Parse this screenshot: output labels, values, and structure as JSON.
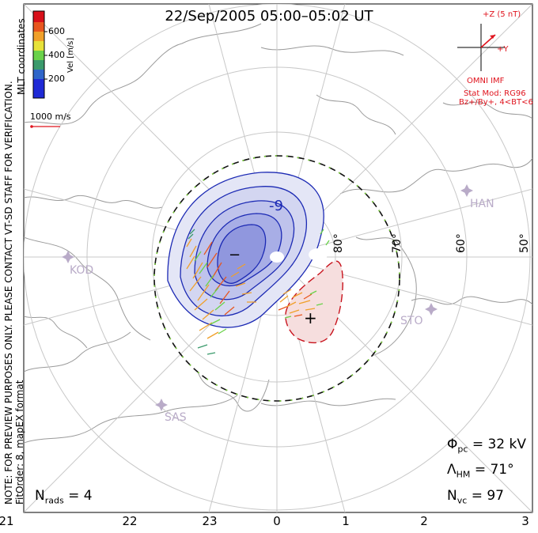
{
  "title": "22/Sep/2005 05:00–05:02 UT",
  "colorbar": {
    "unit_label": "Vel [m/s]",
    "ticks": [
      "600",
      "400",
      "200"
    ],
    "colors": [
      "#1f2ad6",
      "#2f66c9",
      "#3a9a6c",
      "#6ad24a",
      "#e7e23a",
      "#f0a02a",
      "#e8561f",
      "#d8101a"
    ]
  },
  "coordinates_label": "MLT coordinates",
  "scale_vector_label": "1000 m/s",
  "preview_note": "NOTE: FOR PREVIEW PURPOSES ONLY. PLEASE CONTACT VT-SD STAFF FOR VERIFICATION.",
  "fit_order_note": "FitOrder: 8, mapEX format",
  "imf": {
    "z_label": "+Z (5 nT)",
    "y_label": "+Y",
    "source": "OMNI IMF",
    "stat_mod": "Stat Mod: RG96",
    "condition": "Bz+/By+, 4<BT<6"
  },
  "map": {
    "latitude_labels": [
      "80°",
      "70°",
      "60°",
      "50°"
    ],
    "contour_label": "-9",
    "radar_stations": [
      "HAN",
      "KOD",
      "STO",
      "SAS"
    ],
    "min_marker": "−",
    "max_marker": "+"
  },
  "stats": {
    "phi_pc_symbol": "Φ",
    "phi_pc_sub": "pc",
    "phi_pc_value": "= 32 kV",
    "lambda_symbol": "Λ",
    "lambda_sub": "HM",
    "lambda_value": "= 71°",
    "nvc_symbol": "N",
    "nvc_sub": "vc",
    "nvc_value": "= 97",
    "nrads_symbol": "N",
    "nrads_sub": "rads",
    "nrads_value": "= 4"
  },
  "mlt_axis": [
    "21",
    "22",
    "23",
    "0",
    "1",
    "2",
    "3"
  ]
}
